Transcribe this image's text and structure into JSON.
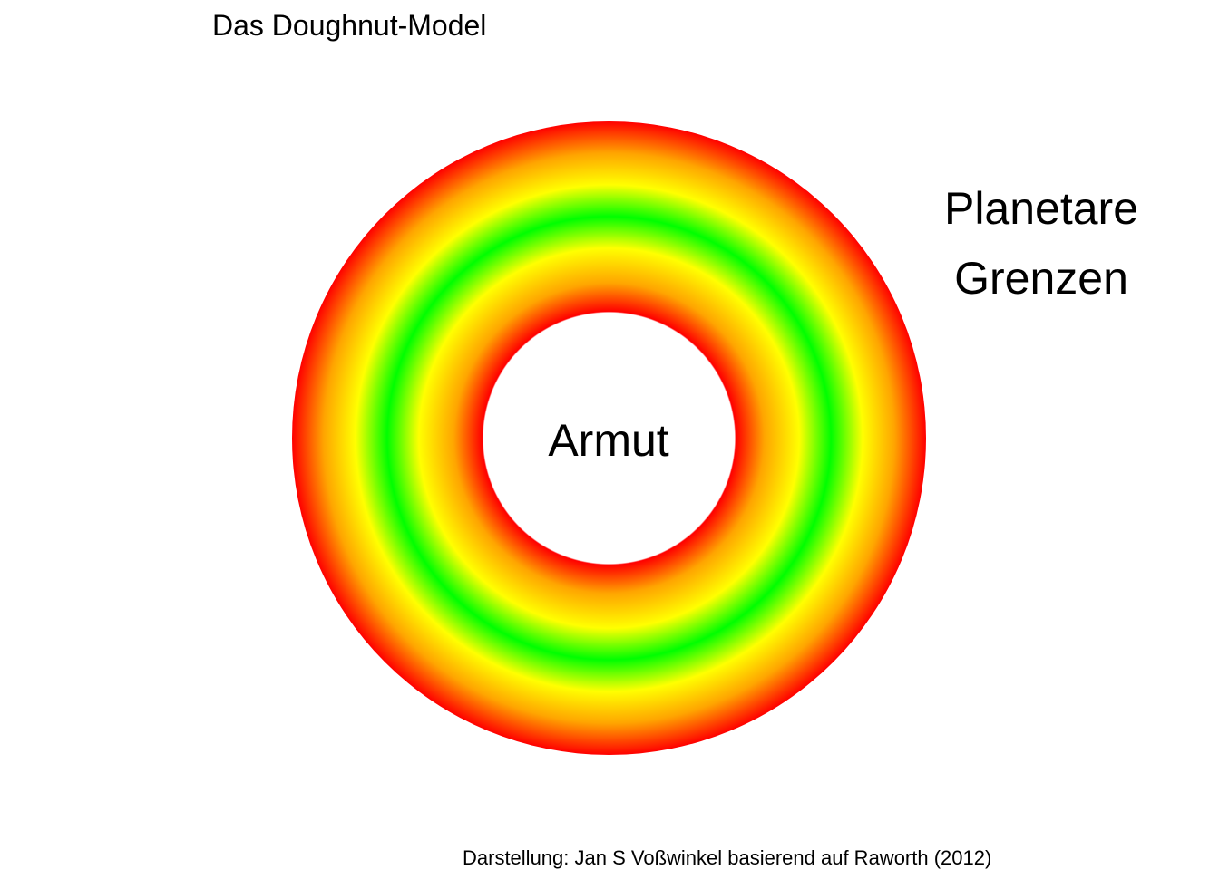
{
  "diagram": {
    "title": "Das Doughnut-Model",
    "center_label": "Armut",
    "outer_label_lines": [
      "Planetare",
      "Grenzen"
    ],
    "caption": "Darstellung: Jan S Voßwinkel basierend auf Raworth (2012)",
    "ring_colors": {
      "inner_edge": "#ff0000",
      "inner_mid": "#ffa500",
      "inner_yellow": "#ffff00",
      "center": "#00ff00",
      "outer_yellow": "#ffff00",
      "outer_mid": "#ffa500",
      "outer_edge": "#ff0000"
    }
  }
}
